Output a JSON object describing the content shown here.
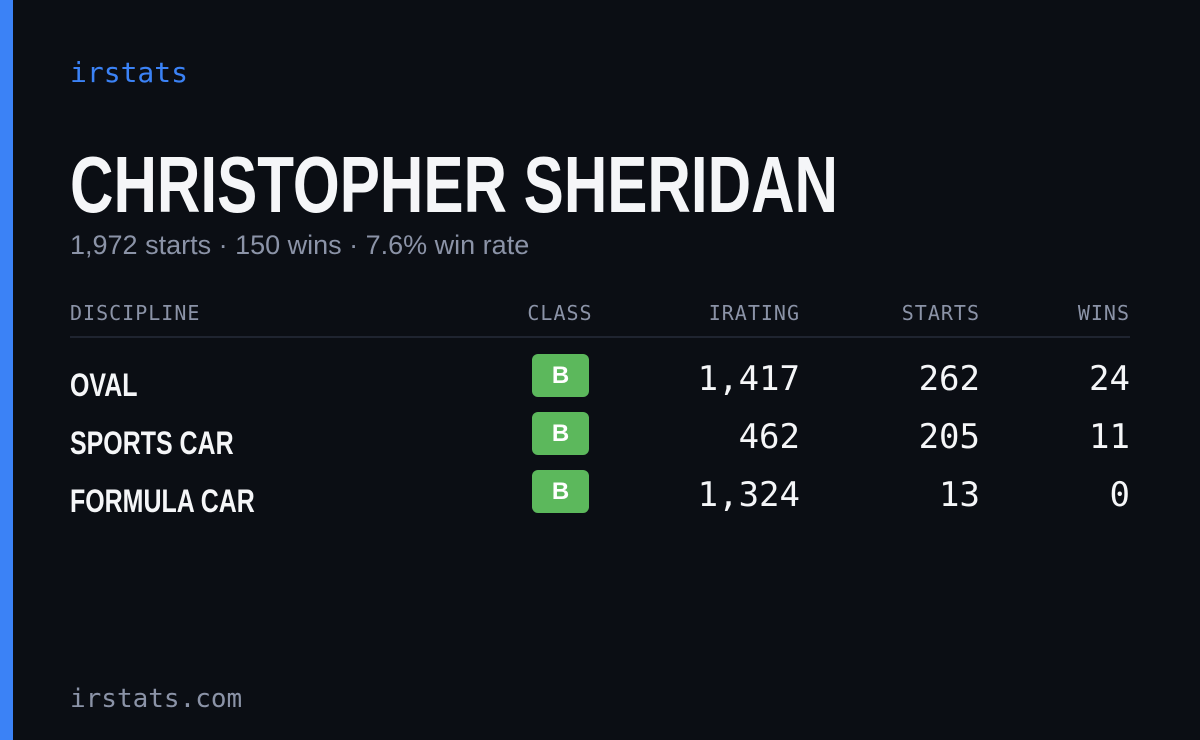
{
  "brand": "irstats",
  "profile": {
    "name": "CHRISTOPHER SHERIDAN",
    "summary": "1,972 starts · 150 wins · 7.6% win rate"
  },
  "table": {
    "columns": [
      "DISCIPLINE",
      "CLASS",
      "IRATING",
      "STARTS",
      "WINS"
    ],
    "rows": [
      [
        "OVAL",
        "B",
        "1,417",
        "262",
        "24"
      ],
      [
        "SPORTS CAR",
        "B",
        "462",
        "205",
        "11"
      ],
      [
        "FORMULA CAR",
        "B",
        "1,324",
        "13",
        "0"
      ]
    ]
  },
  "footer": "irstats.com"
}
